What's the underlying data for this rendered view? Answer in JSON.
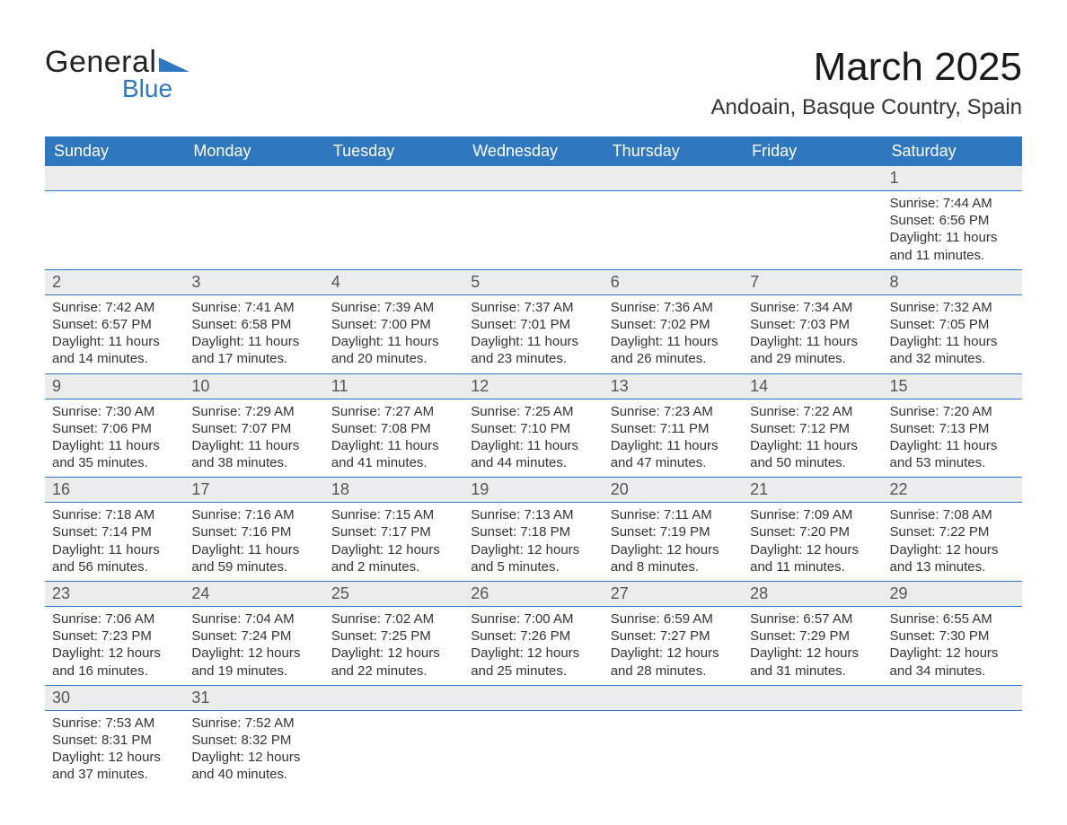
{
  "logo": {
    "text_general": "General",
    "text_blue": "Blue",
    "triangle_color": "#2f78bf"
  },
  "title": "March 2025",
  "location": "Andoain, Basque Country, Spain",
  "colors": {
    "header_bg": "#2f78bf",
    "header_fg": "#ffffff",
    "daynum_bg": "#ececec",
    "row_separator": "#2f78bf",
    "text": "#333333",
    "background": "#ffffff"
  },
  "typography": {
    "title_fontsize": 44,
    "location_fontsize": 24,
    "header_fontsize": 18,
    "daynum_fontsize": 18,
    "body_fontsize": 15,
    "font_family": "Arial"
  },
  "layout": {
    "columns": 7,
    "rows": 6,
    "first_weekday": "Sunday"
  },
  "day_headers": [
    "Sunday",
    "Monday",
    "Tuesday",
    "Wednesday",
    "Thursday",
    "Friday",
    "Saturday"
  ],
  "labels": {
    "sunrise": "Sunrise:",
    "sunset": "Sunset:",
    "daylight": "Daylight:"
  },
  "weeks": [
    [
      null,
      null,
      null,
      null,
      null,
      null,
      {
        "day": "1",
        "sunrise": "7:44 AM",
        "sunset": "6:56 PM",
        "daylight": "11 hours and 11 minutes."
      }
    ],
    [
      {
        "day": "2",
        "sunrise": "7:42 AM",
        "sunset": "6:57 PM",
        "daylight": "11 hours and 14 minutes."
      },
      {
        "day": "3",
        "sunrise": "7:41 AM",
        "sunset": "6:58 PM",
        "daylight": "11 hours and 17 minutes."
      },
      {
        "day": "4",
        "sunrise": "7:39 AM",
        "sunset": "7:00 PM",
        "daylight": "11 hours and 20 minutes."
      },
      {
        "day": "5",
        "sunrise": "7:37 AM",
        "sunset": "7:01 PM",
        "daylight": "11 hours and 23 minutes."
      },
      {
        "day": "6",
        "sunrise": "7:36 AM",
        "sunset": "7:02 PM",
        "daylight": "11 hours and 26 minutes."
      },
      {
        "day": "7",
        "sunrise": "7:34 AM",
        "sunset": "7:03 PM",
        "daylight": "11 hours and 29 minutes."
      },
      {
        "day": "8",
        "sunrise": "7:32 AM",
        "sunset": "7:05 PM",
        "daylight": "11 hours and 32 minutes."
      }
    ],
    [
      {
        "day": "9",
        "sunrise": "7:30 AM",
        "sunset": "7:06 PM",
        "daylight": "11 hours and 35 minutes."
      },
      {
        "day": "10",
        "sunrise": "7:29 AM",
        "sunset": "7:07 PM",
        "daylight": "11 hours and 38 minutes."
      },
      {
        "day": "11",
        "sunrise": "7:27 AM",
        "sunset": "7:08 PM",
        "daylight": "11 hours and 41 minutes."
      },
      {
        "day": "12",
        "sunrise": "7:25 AM",
        "sunset": "7:10 PM",
        "daylight": "11 hours and 44 minutes."
      },
      {
        "day": "13",
        "sunrise": "7:23 AM",
        "sunset": "7:11 PM",
        "daylight": "11 hours and 47 minutes."
      },
      {
        "day": "14",
        "sunrise": "7:22 AM",
        "sunset": "7:12 PM",
        "daylight": "11 hours and 50 minutes."
      },
      {
        "day": "15",
        "sunrise": "7:20 AM",
        "sunset": "7:13 PM",
        "daylight": "11 hours and 53 minutes."
      }
    ],
    [
      {
        "day": "16",
        "sunrise": "7:18 AM",
        "sunset": "7:14 PM",
        "daylight": "11 hours and 56 minutes."
      },
      {
        "day": "17",
        "sunrise": "7:16 AM",
        "sunset": "7:16 PM",
        "daylight": "11 hours and 59 minutes."
      },
      {
        "day": "18",
        "sunrise": "7:15 AM",
        "sunset": "7:17 PM",
        "daylight": "12 hours and 2 minutes."
      },
      {
        "day": "19",
        "sunrise": "7:13 AM",
        "sunset": "7:18 PM",
        "daylight": "12 hours and 5 minutes."
      },
      {
        "day": "20",
        "sunrise": "7:11 AM",
        "sunset": "7:19 PM",
        "daylight": "12 hours and 8 minutes."
      },
      {
        "day": "21",
        "sunrise": "7:09 AM",
        "sunset": "7:20 PM",
        "daylight": "12 hours and 11 minutes."
      },
      {
        "day": "22",
        "sunrise": "7:08 AM",
        "sunset": "7:22 PM",
        "daylight": "12 hours and 13 minutes."
      }
    ],
    [
      {
        "day": "23",
        "sunrise": "7:06 AM",
        "sunset": "7:23 PM",
        "daylight": "12 hours and 16 minutes."
      },
      {
        "day": "24",
        "sunrise": "7:04 AM",
        "sunset": "7:24 PM",
        "daylight": "12 hours and 19 minutes."
      },
      {
        "day": "25",
        "sunrise": "7:02 AM",
        "sunset": "7:25 PM",
        "daylight": "12 hours and 22 minutes."
      },
      {
        "day": "26",
        "sunrise": "7:00 AM",
        "sunset": "7:26 PM",
        "daylight": "12 hours and 25 minutes."
      },
      {
        "day": "27",
        "sunrise": "6:59 AM",
        "sunset": "7:27 PM",
        "daylight": "12 hours and 28 minutes."
      },
      {
        "day": "28",
        "sunrise": "6:57 AM",
        "sunset": "7:29 PM",
        "daylight": "12 hours and 31 minutes."
      },
      {
        "day": "29",
        "sunrise": "6:55 AM",
        "sunset": "7:30 PM",
        "daylight": "12 hours and 34 minutes."
      }
    ],
    [
      {
        "day": "30",
        "sunrise": "7:53 AM",
        "sunset": "8:31 PM",
        "daylight": "12 hours and 37 minutes."
      },
      {
        "day": "31",
        "sunrise": "7:52 AM",
        "sunset": "8:32 PM",
        "daylight": "12 hours and 40 minutes."
      },
      null,
      null,
      null,
      null,
      null
    ]
  ]
}
